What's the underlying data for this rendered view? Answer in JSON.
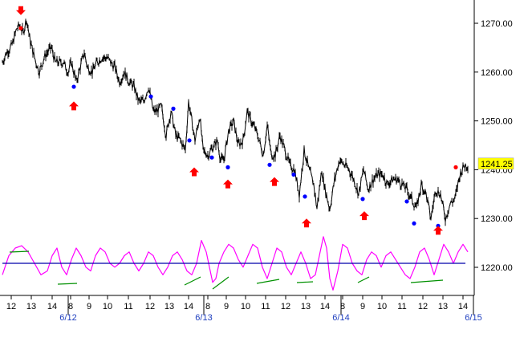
{
  "chart_data": {
    "type": "line",
    "subtype": "intraday price with oscillator panel",
    "colors": {
      "price": "#000000",
      "axis": "#000000",
      "date_label": "#1f3fbf",
      "buy_arrow": "#ff0000",
      "sell_arrow": "#ff0000",
      "low_marker": "#0000ff",
      "high_marker": "#ff0000",
      "oscillator": "#ff00ff",
      "zero_line": "#0000aa",
      "divergence": "#009000",
      "current_price_bg": "#ffff00"
    },
    "y_axis": {
      "ylim": [
        1224,
        1273
      ],
      "ticks": [
        "1270.00",
        "1260.00",
        "1250.00",
        "1240.00",
        "1230.00",
        "1220.00"
      ],
      "position": "right"
    },
    "current_price": "1241.25",
    "x_axis": {
      "hour_labels": [
        "12",
        "13",
        "14",
        "8",
        "9",
        "10",
        "11",
        "12",
        "13",
        "14",
        "8",
        "9",
        "10",
        "11",
        "12",
        "13",
        "14",
        "8",
        "9",
        "10",
        "11",
        "12",
        "13",
        "14"
      ],
      "date_labels": [
        "6/12",
        "6/13",
        "6/14",
        "6/15"
      ]
    },
    "price_anchors": {
      "x": [
        0,
        5,
        12,
        18,
        22,
        26,
        30,
        35,
        40,
        46,
        52,
        56,
        61,
        66,
        71,
        76,
        82,
        86,
        92,
        97,
        102,
        106,
        112,
        118,
        124,
        130,
        135,
        140,
        146,
        152,
        158,
        164,
        170,
        176,
        182,
        188,
        192,
        198,
        204,
        210,
        216,
        222,
        228,
        232,
        236,
        240,
        246,
        250,
        256,
        260,
        264,
        268,
        272,
        276,
        282,
        288,
        294,
        300,
        305,
        310,
        316,
        320,
        325,
        330,
        335,
        340,
        346,
        352,
        358,
        364,
        370,
        376,
        382,
        388,
        392,
        398,
        402,
        408,
        414,
        420,
        426,
        432,
        438,
        444,
        450,
        456,
        462,
        468,
        474,
        480,
        486,
        492,
        498,
        504,
        510,
        516,
        522,
        528,
        534,
        540,
        546,
        552,
        558,
        564,
        570,
        576,
        580
      ],
      "y": [
        1262,
        1264,
        1265.5,
        1269,
        1269.5,
        1268,
        1271,
        1266,
        1263,
        1260,
        1263,
        1264,
        1265,
        1262,
        1262,
        1262,
        1260,
        1262,
        1258,
        1261,
        1264,
        1261,
        1260,
        1262,
        1263,
        1263,
        1262,
        1261,
        1258,
        1260,
        1258,
        1257,
        1254,
        1254,
        1257,
        1252,
        1252,
        1253,
        1247,
        1252,
        1247,
        1246,
        1244,
        1254,
        1250,
        1246,
        1251,
        1244,
        1243,
        1244,
        1245,
        1246,
        1242,
        1242,
        1248,
        1250,
        1245,
        1246,
        1252,
        1250,
        1248,
        1246,
        1243,
        1249,
        1243,
        1243,
        1247,
        1244,
        1241,
        1240,
        1235,
        1244,
        1240,
        1237,
        1232,
        1240,
        1236,
        1232,
        1238,
        1242,
        1241,
        1240,
        1238,
        1235,
        1240,
        1236,
        1238,
        1239,
        1239,
        1237,
        1238,
        1238,
        1237,
        1236,
        1234,
        1232,
        1237,
        1235,
        1230,
        1236,
        1235,
        1230,
        1233,
        1234,
        1239,
        1241,
        1241
      ]
    },
    "low_markers": {
      "x": [
        92,
        188,
        216,
        236,
        264,
        284,
        336,
        366,
        380,
        452,
        507,
        516,
        546
      ],
      "y": [
        1257,
        1255,
        1252.5,
        1246,
        1242.5,
        1240.5,
        1241,
        1239,
        1234.5,
        1234,
        1233.5,
        1229,
        1228.5
      ]
    },
    "high_markers": {
      "x": [
        26,
        568
      ],
      "y": [
        1269,
        1240.5
      ]
    },
    "buy_arrows_x": [
      92,
      242,
      284,
      342,
      382,
      454,
      546
    ],
    "buy_arrows_y": [
      1253,
      1239.5,
      1237,
      1237.5,
      1229,
      1230.5,
      1227.5
    ],
    "sell_arrows_x": [
      26
    ],
    "sell_arrows_y": [
      1273
    ],
    "oscillator": {
      "zero_level": 0,
      "x": [
        0,
        8,
        16,
        24,
        32,
        40,
        48,
        56,
        62,
        68,
        74,
        80,
        86,
        92,
        98,
        104,
        110,
        116,
        122,
        128,
        134,
        140,
        146,
        152,
        158,
        164,
        170,
        176,
        182,
        188,
        194,
        200,
        206,
        212,
        218,
        224,
        230,
        236,
        242,
        248,
        254,
        258,
        262,
        266,
        270,
        276,
        282,
        288,
        294,
        300,
        306,
        312,
        318,
        324,
        330,
        336,
        342,
        348,
        354,
        360,
        366,
        372,
        378,
        384,
        390,
        396,
        400,
        404,
        408,
        412,
        418,
        424,
        430,
        436,
        442,
        448,
        454,
        460,
        466,
        472,
        478,
        484,
        490,
        496,
        502,
        508,
        514,
        520,
        526,
        532,
        538,
        544,
        550,
        556,
        562,
        568,
        574,
        580
      ],
      "y": [
        -20,
        5,
        15,
        18,
        10,
        -5,
        -20,
        -15,
        5,
        15,
        -10,
        -20,
        0,
        15,
        5,
        -10,
        -15,
        5,
        15,
        10,
        -5,
        -10,
        -5,
        5,
        10,
        -5,
        -15,
        -5,
        10,
        5,
        -10,
        -20,
        -10,
        5,
        10,
        0,
        -15,
        -20,
        -5,
        25,
        10,
        -10,
        -30,
        -25,
        -5,
        10,
        20,
        15,
        0,
        -10,
        5,
        20,
        15,
        -10,
        -25,
        -5,
        15,
        10,
        -10,
        -20,
        -5,
        10,
        -5,
        -25,
        -20,
        10,
        30,
        15,
        -25,
        -40,
        -15,
        20,
        15,
        -5,
        -15,
        -20,
        0,
        10,
        5,
        -10,
        5,
        10,
        0,
        -10,
        -20,
        -25,
        -10,
        10,
        15,
        0,
        -20,
        0,
        20,
        10,
        -5,
        10,
        20,
        10
      ],
      "ylim": [
        -45,
        35
      ]
    }
  }
}
